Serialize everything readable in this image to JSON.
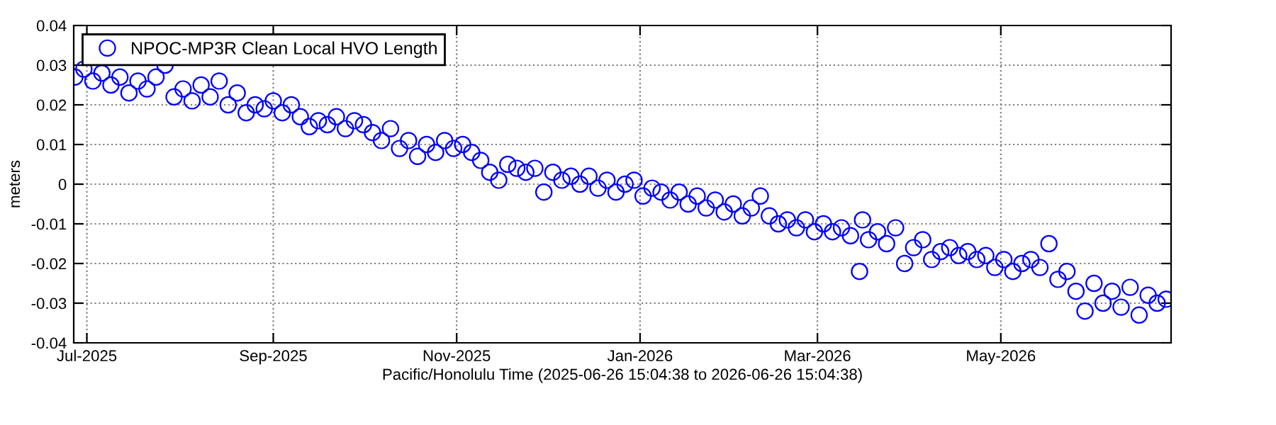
{
  "chart_data": {
    "type": "scatter",
    "xlabel": "Pacific/Honolulu Time (2025-06-26 15:04:38 to 2026-06-26 15:04:38)",
    "ylabel": "meters",
    "xlim": [
      "2025-06-26T15:04",
      "2026-06-26T15:04"
    ],
    "xticks": [
      {
        "value": "2025-07-01",
        "label": "Jul-2025"
      },
      {
        "value": "2025-09-01",
        "label": "Sep-2025"
      },
      {
        "value": "2025-11-01",
        "label": "Nov-2025"
      },
      {
        "value": "2026-01-01",
        "label": "Jan-2026"
      },
      {
        "value": "2026-03-01",
        "label": "Mar-2026"
      },
      {
        "value": "2026-05-01",
        "label": "May-2026"
      }
    ],
    "ylim": [
      -0.04,
      0.04
    ],
    "yticks": [
      -0.04,
      -0.03,
      -0.02,
      -0.01,
      0,
      0.01,
      0.02,
      0.03,
      0.04
    ],
    "grid": true,
    "legend": "top left",
    "marker": "circle",
    "series": [
      {
        "name": "NPOC-MP3R Clean Local HVO Length",
        "color": "#0000ff",
        "x": [
          "2025-06-27",
          "2025-06-30",
          "2025-07-03",
          "2025-07-06",
          "2025-07-09",
          "2025-07-12",
          "2025-07-15",
          "2025-07-18",
          "2025-07-21",
          "2025-07-24",
          "2025-07-27",
          "2025-07-30",
          "2025-08-02",
          "2025-08-05",
          "2025-08-08",
          "2025-08-11",
          "2025-08-14",
          "2025-08-17",
          "2025-08-20",
          "2025-08-23",
          "2025-08-26",
          "2025-08-29",
          "2025-09-01",
          "2025-09-04",
          "2025-09-07",
          "2025-09-10",
          "2025-09-13",
          "2025-09-16",
          "2025-09-19",
          "2025-09-22",
          "2025-09-25",
          "2025-09-28",
          "2025-10-01",
          "2025-10-04",
          "2025-10-07",
          "2025-10-10",
          "2025-10-13",
          "2025-10-16",
          "2025-10-19",
          "2025-10-22",
          "2025-10-25",
          "2025-10-28",
          "2025-10-31",
          "2025-11-03",
          "2025-11-06",
          "2025-11-09",
          "2025-11-12",
          "2025-11-15",
          "2025-11-18",
          "2025-11-21",
          "2025-11-24",
          "2025-11-27",
          "2025-11-30",
          "2025-12-03",
          "2025-12-06",
          "2025-12-09",
          "2025-12-12",
          "2025-12-15",
          "2025-12-18",
          "2025-12-21",
          "2025-12-24",
          "2025-12-27",
          "2025-12-30",
          "2026-01-02",
          "2026-01-05",
          "2026-01-08",
          "2026-01-11",
          "2026-01-14",
          "2026-01-17",
          "2026-01-20",
          "2026-01-23",
          "2026-01-26",
          "2026-01-29",
          "2026-02-01",
          "2026-02-04",
          "2026-02-07",
          "2026-02-10",
          "2026-02-13",
          "2026-02-16",
          "2026-02-19",
          "2026-02-22",
          "2026-02-25",
          "2026-02-28",
          "2026-03-03",
          "2026-03-06",
          "2026-03-09",
          "2026-03-12",
          "2026-03-15",
          "2026-03-16",
          "2026-03-18",
          "2026-03-21",
          "2026-03-24",
          "2026-03-27",
          "2026-03-30",
          "2026-04-02",
          "2026-04-05",
          "2026-04-08",
          "2026-04-11",
          "2026-04-14",
          "2026-04-17",
          "2026-04-20",
          "2026-04-23",
          "2026-04-26",
          "2026-04-29",
          "2026-05-02",
          "2026-05-05",
          "2026-05-08",
          "2026-05-11",
          "2026-05-14",
          "2026-05-17",
          "2026-05-20",
          "2026-05-23",
          "2026-05-26",
          "2026-05-29",
          "2026-06-01",
          "2026-06-04",
          "2026-06-07",
          "2026-06-10",
          "2026-06-13",
          "2026-06-16",
          "2026-06-19",
          "2026-06-22",
          "2026-06-25"
        ],
        "values": [
          0.027,
          0.029,
          0.026,
          0.028,
          0.025,
          0.027,
          0.023,
          0.026,
          0.024,
          0.027,
          0.03,
          0.022,
          0.024,
          0.021,
          0.025,
          0.022,
          0.026,
          0.02,
          0.023,
          0.018,
          0.02,
          0.019,
          0.021,
          0.018,
          0.02,
          0.017,
          0.0145,
          0.016,
          0.015,
          0.017,
          0.014,
          0.016,
          0.015,
          0.013,
          0.011,
          0.014,
          0.009,
          0.011,
          0.007,
          0.01,
          0.008,
          0.011,
          0.009,
          0.01,
          0.008,
          0.006,
          0.003,
          0.001,
          0.005,
          0.004,
          0.003,
          0.004,
          -0.002,
          0.003,
          0.001,
          0.002,
          0.0,
          0.002,
          -0.001,
          0.001,
          -0.002,
          0.0,
          0.001,
          -0.003,
          -0.001,
          -0.002,
          -0.004,
          -0.002,
          -0.005,
          -0.003,
          -0.006,
          -0.004,
          -0.007,
          -0.005,
          -0.008,
          -0.006,
          -0.003,
          -0.008,
          -0.01,
          -0.009,
          -0.011,
          -0.009,
          -0.012,
          -0.01,
          -0.012,
          -0.011,
          -0.013,
          -0.022,
          -0.009,
          -0.014,
          -0.012,
          -0.015,
          -0.011,
          -0.02,
          -0.016,
          -0.014,
          -0.019,
          -0.017,
          -0.016,
          -0.018,
          -0.017,
          -0.019,
          -0.018,
          -0.021,
          -0.019,
          -0.022,
          -0.02,
          -0.019,
          -0.021,
          -0.015,
          -0.024,
          -0.022,
          -0.027,
          -0.032,
          -0.025,
          -0.03,
          -0.027,
          -0.031,
          -0.026,
          -0.033,
          -0.028,
          -0.03,
          -0.029
        ]
      }
    ]
  }
}
